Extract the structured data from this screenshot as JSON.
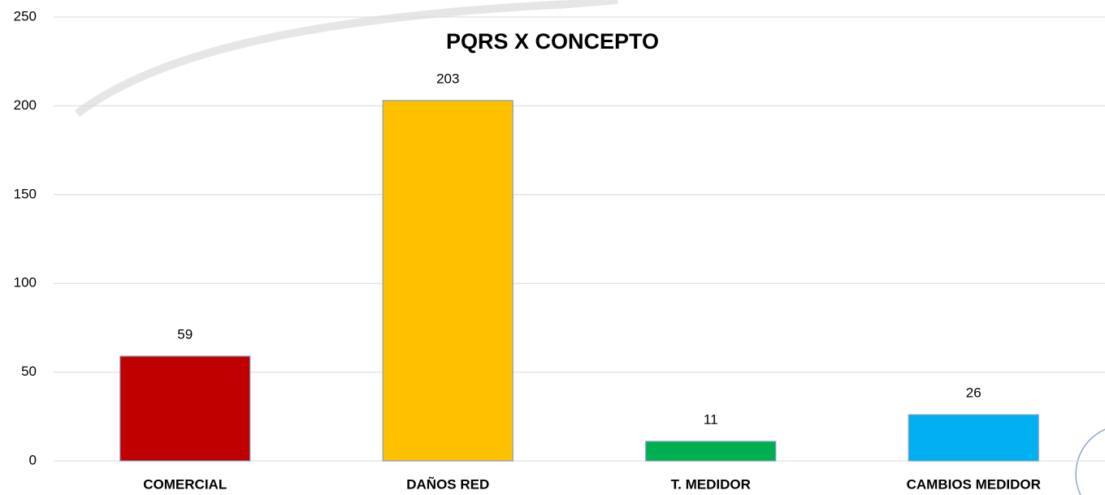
{
  "chart_data": {
    "type": "bar",
    "title": "PQRS X CONCEPTO",
    "categories": [
      "COMERCIAL",
      "DAÑOS RED",
      "T. MEDIDOR",
      "CAMBIOS MEDIDOR"
    ],
    "values": [
      59,
      203,
      11,
      26
    ],
    "colors": [
      "#c00000",
      "#ffc000",
      "#00b050",
      "#00b0f0"
    ],
    "ylim": [
      0,
      250
    ],
    "yticks": [
      0,
      50,
      100,
      150,
      200,
      250
    ],
    "grid": true
  }
}
